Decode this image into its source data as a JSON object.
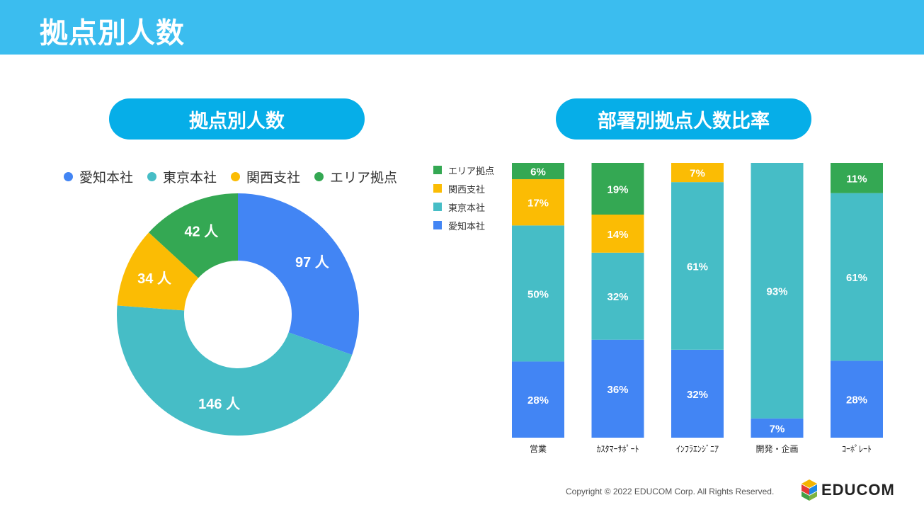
{
  "header": {
    "title": "拠点別人数"
  },
  "left_panel": {
    "title": "拠点別人数"
  },
  "right_panel": {
    "title": "部署別拠点人数比率"
  },
  "colors": {
    "aichi": "#4285f4",
    "tokyo": "#46bdc6",
    "kansai": "#fbbc04",
    "area": "#34a853"
  },
  "chart_data": [
    {
      "type": "pie",
      "title": "拠点別人数",
      "legend_position": "top",
      "labels": [
        "愛知本社",
        "東京本社",
        "関西支社",
        "エリア拠点"
      ],
      "values": [
        97,
        146,
        34,
        42
      ],
      "data_labels": [
        "97 人",
        "146 人",
        "34 人",
        "42 人"
      ]
    },
    {
      "type": "bar",
      "stacked": true,
      "title": "部署別拠点人数比率",
      "legend_position": "left",
      "categories": [
        "営業",
        "ｶｽﾀﾏｰｻﾎﾟｰﾄ",
        "ｲﾝﾌﾗｴﾝｼﾞﾆｱ",
        "開発・企画",
        "ｺｰﾎﾟﾚｰﾄ"
      ],
      "legend_labels": [
        "エリア拠点",
        "関西支社",
        "東京本社",
        "愛知本社"
      ],
      "series": [
        {
          "name": "愛知本社",
          "values": [
            28,
            36,
            32,
            7,
            28
          ]
        },
        {
          "name": "東京本社",
          "values": [
            50,
            32,
            61,
            93,
            61
          ]
        },
        {
          "name": "関西支社",
          "values": [
            17,
            14,
            7,
            0,
            0
          ]
        },
        {
          "name": "エリア拠点",
          "values": [
            6,
            19,
            0,
            0,
            11
          ]
        }
      ],
      "ylim": [
        0,
        100
      ]
    }
  ],
  "footer": {
    "copyright": "Copyright © 2022 EDUCOM Corp. All Rights Reserved.",
    "logo_text": "EDUCOM"
  }
}
